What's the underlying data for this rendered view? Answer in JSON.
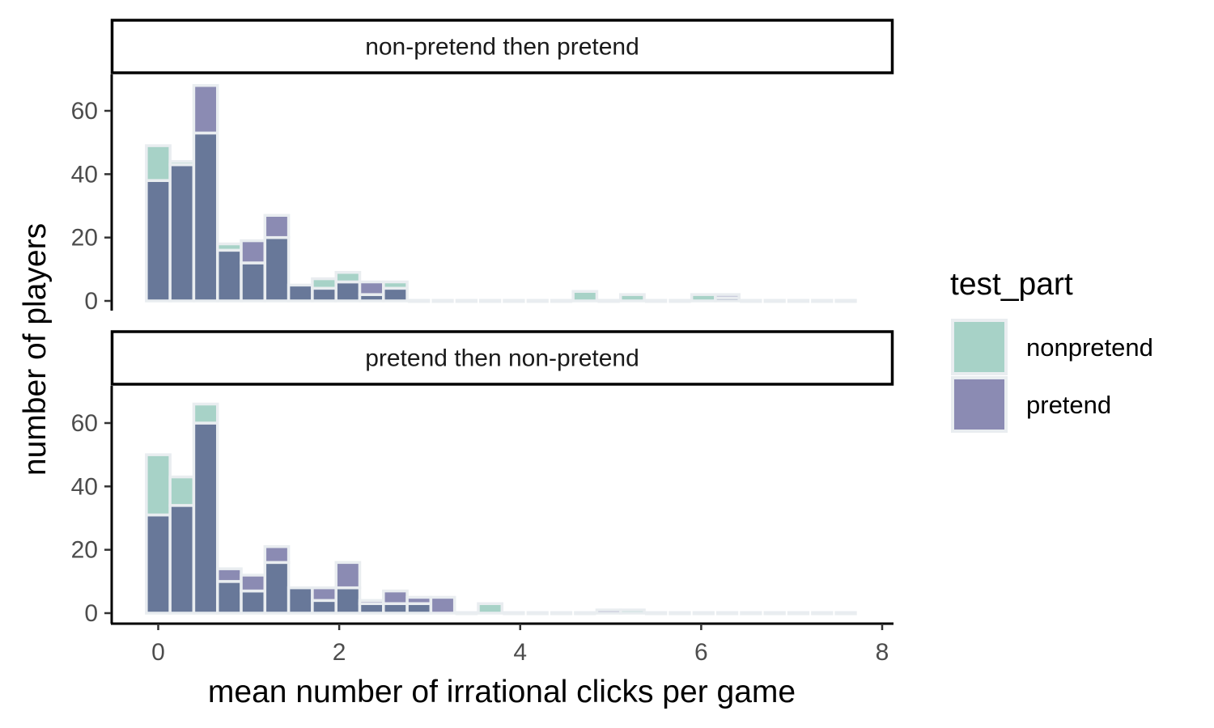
{
  "chart_data": {
    "type": "bar",
    "subtype": "faceted-overlapping-histogram",
    "xlabel": "mean number of irrational clicks per game",
    "ylabel": "number of players",
    "xlim": [
      -0.5,
      8.1
    ],
    "ylim": [
      0,
      71
    ],
    "xticks": [
      0,
      2,
      4,
      6,
      8
    ],
    "yticks": [
      0,
      20,
      40,
      60
    ],
    "bin_width": 0.262,
    "bin_centers": [
      0,
      0.262,
      0.524,
      0.786,
      1.048,
      1.31,
      1.572,
      1.834,
      2.096,
      2.358,
      2.62,
      2.882,
      3.144,
      3.406,
      3.668,
      3.93,
      4.192,
      4.454,
      4.716,
      4.978,
      5.24,
      5.502,
      5.764,
      6.026,
      6.288,
      6.55,
      6.812,
      7.074,
      7.336,
      7.598
    ],
    "legend": {
      "title": "test_part",
      "entries": [
        {
          "label": "nonpretend",
          "color": "#a7d2c7"
        },
        {
          "label": "pretend",
          "color": "#8b8bb3"
        }
      ]
    },
    "overlap_color": "#687899",
    "empty_bin_color": "#e9edf0",
    "border_color": "#e9edf0",
    "facets": [
      {
        "strip": "non-pretend then pretend",
        "series": [
          {
            "name": "nonpretend",
            "values": [
              49,
              44,
              53,
              18,
              12,
              20,
              5,
              7,
              9,
              2,
              6,
              0,
              0,
              0,
              0,
              0,
              0,
              0,
              3,
              0,
              2,
              0,
              0,
              2,
              1,
              0,
              0,
              0,
              0,
              0
            ]
          },
          {
            "name": "pretend",
            "values": [
              38,
              43,
              68,
              16,
              19,
              27,
              5,
              4,
              6,
              6,
              4,
              0,
              0,
              0,
              0,
              0,
              0,
              0,
              0,
              0,
              0,
              0,
              0,
              0,
              2,
              0,
              0,
              0,
              0,
              0
            ]
          }
        ]
      },
      {
        "strip": "pretend then non-pretend",
        "series": [
          {
            "name": "nonpretend",
            "values": [
              50,
              43,
              66,
              10,
              7,
              16,
              8,
              4,
              8,
              3,
              3,
              3,
              0,
              0,
              3,
              0,
              0,
              0,
              0,
              0,
              1,
              0,
              0,
              0,
              0,
              0,
              0,
              0,
              0,
              0
            ]
          },
          {
            "name": "pretend",
            "values": [
              31,
              34,
              60,
              14,
              12,
              21,
              8,
              8,
              16,
              4,
              7,
              5,
              5,
              0,
              0,
              0,
              0,
              0,
              0,
              1,
              0,
              0,
              0,
              0,
              0,
              0,
              0,
              0,
              0,
              0
            ]
          }
        ]
      }
    ]
  }
}
